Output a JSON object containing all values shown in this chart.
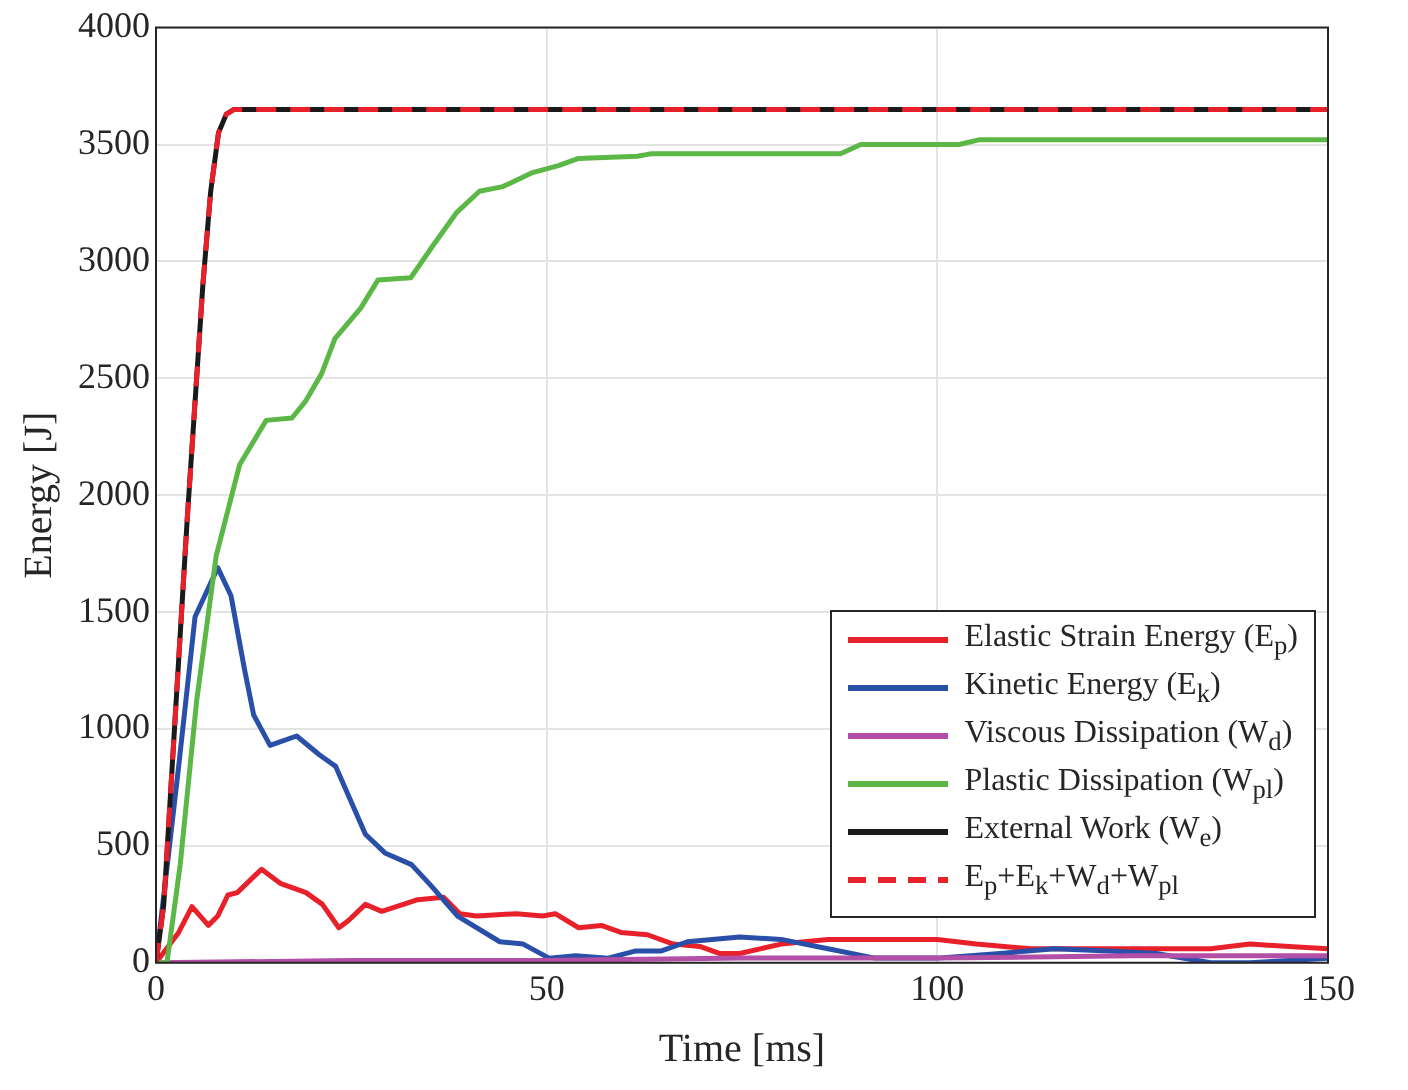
{
  "chart_data": {
    "type": "line",
    "xlabel": "Time [ms]",
    "ylabel": "Energy [J]",
    "xlim": [
      0,
      150
    ],
    "ylim": [
      0,
      4000
    ],
    "xticks": [
      0,
      50,
      100,
      150
    ],
    "yticks": [
      0,
      500,
      1000,
      1500,
      2000,
      2500,
      3000,
      3500,
      4000
    ],
    "grid": true,
    "legend": "bottom right",
    "marker": "none",
    "line_style": "solid",
    "series": [
      {
        "name": "Elastic Strain Energy (E$_{p}$)",
        "color": "#e8202a",
        "x": [
          0,
          2.9,
          4.6,
          6.7,
          7.9,
          9.2,
          10.4,
          13.5,
          15.9,
          19.2,
          21.3,
          23.4,
          24.6,
          26.8,
          28.9,
          33.5,
          36.8,
          38.9,
          41,
          46.1,
          49.5,
          51.1,
          54.1,
          57,
          59.5,
          62.9,
          66.2,
          69.6,
          72.1,
          74.7,
          80,
          86,
          92,
          100,
          105,
          112,
          120,
          128,
          135,
          140,
          145,
          150
        ],
        "values": [
          0,
          130,
          240,
          160,
          200,
          290,
          300,
          400,
          340,
          300,
          250,
          150,
          180,
          250,
          220,
          270,
          280,
          210,
          200,
          210,
          200,
          210,
          150,
          160,
          130,
          120,
          80,
          70,
          40,
          40,
          80,
          100,
          100,
          100,
          80,
          60,
          60,
          60,
          60,
          80,
          70,
          60
        ]
      },
      {
        "name": "Kinetic Energy (E$_{k}$)",
        "color": "#2a4fa8",
        "x": [
          0,
          2.9,
          5,
          7.9,
          9.6,
          11.3,
          12.5,
          14.6,
          18,
          20.9,
          23,
          26.8,
          29.3,
          32.7,
          35.2,
          38.6,
          44,
          47,
          50.3,
          53.7,
          57.9,
          61.3,
          64.6,
          68,
          74.7,
          80,
          86,
          92,
          100,
          108,
          115,
          122,
          128,
          135,
          140,
          145,
          150
        ],
        "values": [
          0,
          840,
          1480,
          1690,
          1570,
          1260,
          1060,
          930,
          970,
          890,
          840,
          550,
          470,
          420,
          330,
          200,
          90,
          80,
          20,
          30,
          20,
          50,
          50,
          90,
          110,
          100,
          60,
          20,
          20,
          40,
          60,
          50,
          40,
          0,
          0,
          10,
          20
        ]
      },
      {
        "name": "Viscous Dissipation (W$_{d}$)",
        "color": "#b44fa8",
        "x": [
          0,
          25,
          50,
          75,
          100,
          125,
          150
        ],
        "values": [
          0,
          10,
          10,
          20,
          20,
          30,
          30
        ]
      },
      {
        "name": "Plastic Dissipation (W$_{pl}$)",
        "color": "#5cb846",
        "x": [
          0,
          1.4,
          3.1,
          5.2,
          7.7,
          10.7,
          14.1,
          17.4,
          19.1,
          21.2,
          22.9,
          26.2,
          28.4,
          32.6,
          35.5,
          38.5,
          41.4,
          44.4,
          48.2,
          51.5,
          54,
          61.6,
          63.3,
          87.6,
          90.2,
          102.8,
          105.3,
          150
        ],
        "values": [
          0,
          0,
          420,
          1120,
          1740,
          2130,
          2320,
          2330,
          2400,
          2520,
          2670,
          2800,
          2920,
          2930,
          3070,
          3210,
          3300,
          3320,
          3380,
          3410,
          3440,
          3450,
          3460,
          3460,
          3500,
          3500,
          3520,
          3520
        ]
      },
      {
        "name": "External Work (W$_{e}$)",
        "color": "#1a1a1a",
        "x": [
          0,
          1,
          2,
          3,
          4,
          5,
          6,
          7,
          8,
          9,
          10,
          150
        ],
        "values": [
          0,
          250,
          800,
          1350,
          1900,
          2400,
          2900,
          3300,
          3550,
          3630,
          3650,
          3650
        ]
      },
      {
        "name": "E$_{p}$+E$_{k}$+W$_{d}$+W$_{pl}$",
        "color": "#e8202a",
        "line_style": "dashed",
        "x": [
          0,
          1,
          2,
          3,
          4,
          5,
          6,
          7,
          8,
          9,
          10,
          150
        ],
        "values": [
          0,
          250,
          800,
          1350,
          1900,
          2400,
          2900,
          3300,
          3550,
          3630,
          3650,
          3650
        ]
      }
    ]
  }
}
